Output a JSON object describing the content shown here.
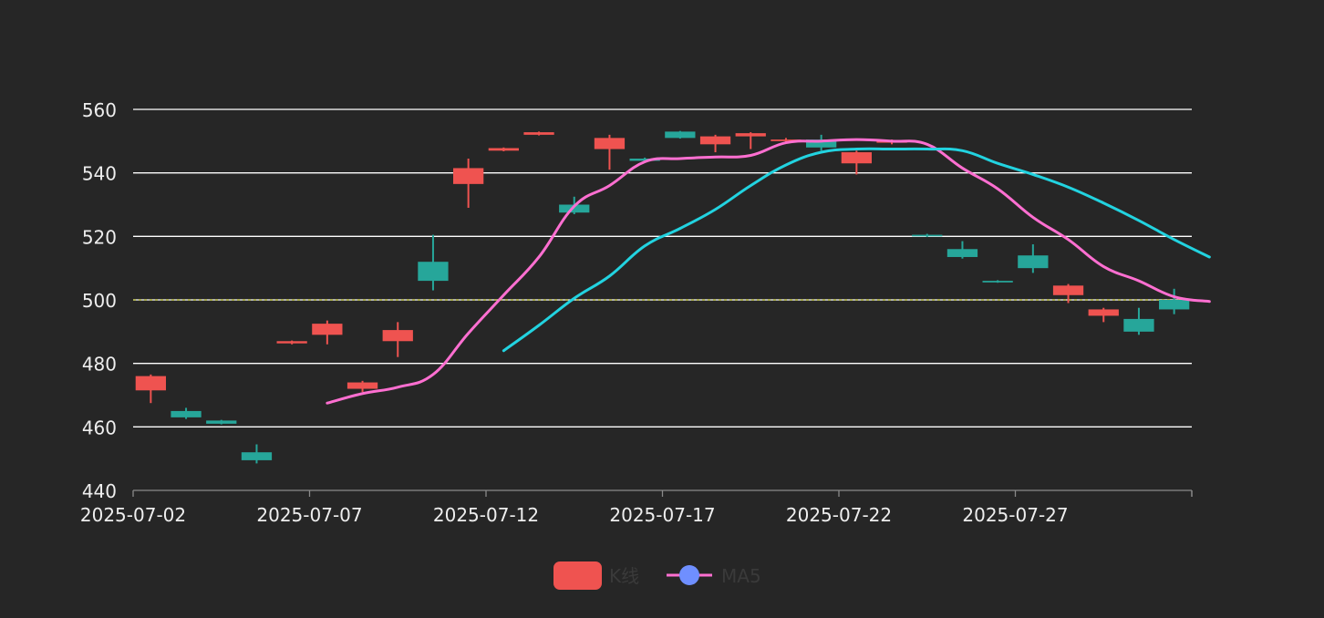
{
  "chart_data": {
    "type": "candlestick",
    "x_ticks": [
      "2025-07-02",
      "2025-07-07",
      "2025-07-12",
      "2025-07-17",
      "2025-07-22",
      "2025-07-27"
    ],
    "y_ticks": [
      "440",
      "460",
      "480",
      "500",
      "520",
      "540",
      "560"
    ],
    "ylim": [
      440,
      560
    ],
    "grid": true,
    "reference_line": {
      "value": 500,
      "color": "#d6d84a"
    },
    "legend_position": "bottom-center",
    "colors": {
      "up": "#ef5350",
      "down": "#26a69a",
      "ma5": "#ff6fd1",
      "ma10": "#22d3e0",
      "gridline": "#ffffff",
      "axis_text": "#eeeeee",
      "legend_text": "#3a3a3a",
      "legend_dot": "#6f8fff"
    },
    "legend": [
      {
        "label": "K线",
        "icon": "rounded-rect"
      },
      {
        "label": "MA5",
        "icon": "line-dot"
      }
    ],
    "candles": [
      {
        "date": "2025-07-02",
        "open": 471.5,
        "close": 476.0,
        "low": 467.5,
        "high": 476.5
      },
      {
        "date": "2025-07-03",
        "open": 465.0,
        "close": 463.0,
        "low": 462.5,
        "high": 466.0
      },
      {
        "date": "2025-07-04",
        "open": 462.0,
        "close": 461.0,
        "low": 460.8,
        "high": 462.2
      },
      {
        "date": "2025-07-05",
        "open": 452.0,
        "close": 449.5,
        "low": 448.5,
        "high": 454.5
      },
      {
        "date": "2025-07-06",
        "open": 486.3,
        "close": 487.0,
        "low": 486.0,
        "high": 487.2
      },
      {
        "date": "2025-07-07",
        "open": 489.0,
        "close": 492.5,
        "low": 486.0,
        "high": 493.5
      },
      {
        "date": "2025-07-08",
        "open": 472.0,
        "close": 474.0,
        "low": 471.0,
        "high": 474.5
      },
      {
        "date": "2025-07-09",
        "open": 487.0,
        "close": 490.5,
        "low": 482.0,
        "high": 493.0
      },
      {
        "date": "2025-07-10",
        "open": 512.0,
        "close": 506.0,
        "low": 503.0,
        "high": 520.5
      },
      {
        "date": "2025-07-11",
        "open": 536.5,
        "close": 541.5,
        "low": 529.0,
        "high": 544.5
      },
      {
        "date": "2025-07-12",
        "open": 547.0,
        "close": 547.8,
        "low": 546.8,
        "high": 548.0
      },
      {
        "date": "2025-07-13",
        "open": 552.0,
        "close": 552.8,
        "low": 551.8,
        "high": 553.0
      },
      {
        "date": "2025-07-14",
        "open": 530.0,
        "close": 527.5,
        "low": 527.0,
        "high": 532.5
      },
      {
        "date": "2025-07-15",
        "open": 547.5,
        "close": 551.0,
        "low": 541.0,
        "high": 552.0
      },
      {
        "date": "2025-07-16",
        "open": 544.5,
        "close": 543.8,
        "low": 543.5,
        "high": 544.8
      },
      {
        "date": "2025-07-17",
        "open": 553.0,
        "close": 551.0,
        "low": 550.8,
        "high": 553.2
      },
      {
        "date": "2025-07-18",
        "open": 549.0,
        "close": 551.5,
        "low": 546.5,
        "high": 552.0
      },
      {
        "date": "2025-07-19",
        "open": 551.5,
        "close": 552.5,
        "low": 547.5,
        "high": 552.8
      },
      {
        "date": "2025-07-20",
        "open": 550.0,
        "close": 550.5,
        "low": 549.5,
        "high": 551.0
      },
      {
        "date": "2025-07-21",
        "open": 550.5,
        "close": 548.0,
        "low": 547.0,
        "high": 552.0
      },
      {
        "date": "2025-07-22",
        "open": 543.0,
        "close": 546.5,
        "low": 539.5,
        "high": 547.0
      },
      {
        "date": "2025-07-23",
        "open": 549.5,
        "close": 550.0,
        "low": 549.0,
        "high": 550.5
      },
      {
        "date": "2025-07-24",
        "open": 520.5,
        "close": 520.0,
        "low": 519.8,
        "high": 520.8
      },
      {
        "date": "2025-07-25",
        "open": 516.0,
        "close": 513.5,
        "low": 513.0,
        "high": 518.5
      },
      {
        "date": "2025-07-26",
        "open": 506.0,
        "close": 505.5,
        "low": 505.4,
        "high": 506.2
      },
      {
        "date": "2025-07-27",
        "open": 514.0,
        "close": 510.0,
        "low": 508.5,
        "high": 517.5
      },
      {
        "date": "2025-07-28",
        "open": 501.5,
        "close": 504.5,
        "low": 499.0,
        "high": 505.0
      },
      {
        "date": "2025-07-29",
        "open": 495.0,
        "close": 497.0,
        "low": 493.0,
        "high": 497.5
      },
      {
        "date": "2025-07-30",
        "open": 494.0,
        "close": 490.0,
        "low": 489.0,
        "high": 497.5
      },
      {
        "date": "2025-07-31",
        "open": 500.0,
        "close": 497.0,
        "low": 495.5,
        "high": 503.5
      }
    ],
    "series": [
      {
        "name": "MA5",
        "start_index": 5,
        "values": [
          467.5,
          470.5,
          472.5,
          476.5,
          489.5,
          501.5,
          513.5,
          529.5,
          536.0,
          543.5,
          544.5,
          545.0,
          545.5,
          549.5,
          550.0,
          550.5,
          550.0,
          549.0,
          541.5,
          535.0,
          526.0,
          519.0,
          510.5,
          506.0,
          501.0,
          499.5
        ]
      },
      {
        "start_index": 10,
        "values": [
          484.0,
          492.0,
          500.5,
          507.5,
          517.0,
          522.5,
          528.5,
          536.0,
          542.5,
          546.5,
          547.5,
          547.5,
          547.5,
          547.0,
          543.0,
          539.5,
          535.5,
          530.5,
          525.0,
          519.0,
          513.5
        ]
      }
    ]
  }
}
